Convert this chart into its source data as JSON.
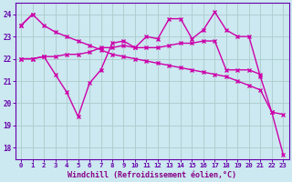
{
  "xlabel": "Windchill (Refroidissement éolien,°C)",
  "x_values": [
    0,
    1,
    2,
    3,
    4,
    5,
    6,
    7,
    8,
    9,
    10,
    11,
    12,
    13,
    14,
    15,
    16,
    17,
    18,
    19,
    20,
    21,
    22,
    23
  ],
  "line_declining": [
    23.5,
    24.0,
    23.5,
    23.2,
    23.0,
    22.8,
    22.6,
    22.4,
    22.2,
    22.1,
    22.0,
    21.9,
    21.8,
    21.7,
    21.6,
    21.5,
    21.4,
    21.3,
    21.2,
    21.0,
    20.8,
    20.6,
    19.6,
    17.7
  ],
  "line_zigzag": [
    22.0,
    22.0,
    22.1,
    21.3,
    20.5,
    19.4,
    20.9,
    21.5,
    22.7,
    22.8,
    22.5,
    23.0,
    22.9,
    23.8,
    23.8,
    22.9,
    23.3,
    24.1,
    23.3,
    23.0,
    23.0,
    21.2,
    19.6,
    19.5
  ],
  "line_smooth": [
    22.0,
    22.0,
    22.1,
    22.1,
    22.2,
    22.2,
    22.3,
    22.5,
    22.5,
    22.6,
    22.5,
    22.5,
    22.5,
    22.6,
    22.7,
    22.7,
    22.8,
    22.8,
    21.5,
    21.5,
    21.5,
    21.3,
    null,
    null
  ],
  "line_short_top": [
    23.5,
    24.0,
    null,
    null,
    null,
    null,
    null,
    null,
    null,
    null,
    null,
    null,
    null,
    null,
    null,
    null,
    null,
    null,
    null,
    null,
    null,
    null,
    null,
    null
  ],
  "ylim": [
    17.5,
    24.5
  ],
  "xlim": [
    -0.5,
    23.5
  ],
  "yticks": [
    18,
    19,
    20,
    21,
    22,
    23,
    24
  ],
  "bg_color": "#cce8f0",
  "line_color": "#cc00aa",
  "grid_color": "#aacccc",
  "label_color": "#880088",
  "spine_color": "#6600aa"
}
